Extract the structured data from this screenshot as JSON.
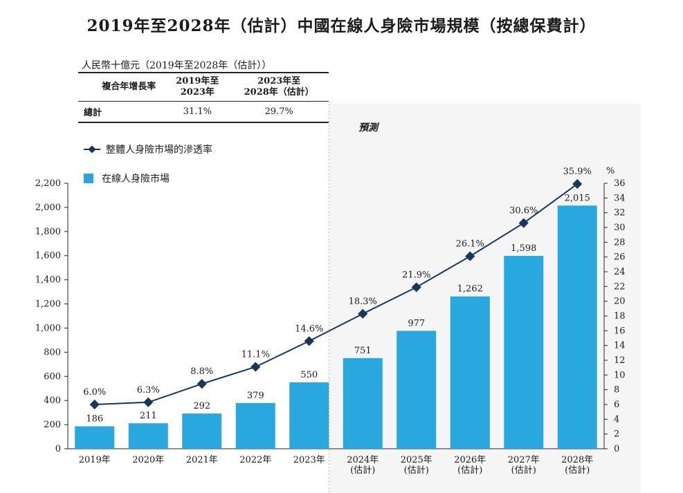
{
  "title": "2019年至2028年（估計）中國在線人身險市場規模（按總保費計）",
  "unit_label": "人民幣十億元（2019年至2028年（估計））",
  "cagr_table": {
    "header": [
      "複合年增長率",
      "2019年至\n2023年",
      "2023年至\n2028年（估計）"
    ],
    "row": [
      "總計",
      "31.1%",
      "29.7%"
    ]
  },
  "forecast_label": "預測",
  "colors": {
    "bar": "#29a8e0",
    "line": "#17375e",
    "forecast_bg": "#ececec"
  },
  "chart_data": {
    "type": "bar",
    "categories": [
      "2019年",
      "2020年",
      "2021年",
      "2022年",
      "2023年",
      "2024年\n(估計)",
      "2025年\n(估計)",
      "2026年\n(估計)",
      "2027年\n(估計)",
      "2028年\n(估計)"
    ],
    "series": [
      {
        "name": "在線人身險市場",
        "type": "bar",
        "axis": "left",
        "values": [
          186,
          211,
          292,
          379,
          550,
          751,
          977,
          1262,
          1598,
          2015
        ],
        "labels": [
          "186",
          "211",
          "292",
          "379",
          "550",
          "751",
          "977",
          "1,262",
          "1,598",
          "2,015"
        ]
      },
      {
        "name": "整體人身險市場的滲透率",
        "type": "line",
        "axis": "right",
        "values": [
          6.0,
          6.3,
          8.8,
          11.1,
          14.6,
          18.3,
          21.9,
          26.1,
          30.6,
          35.9
        ],
        "labels": [
          "6.0%",
          "6.3%",
          "8.8%",
          "11.1%",
          "14.6%",
          "18.3%",
          "21.9%",
          "26.1%",
          "30.6%",
          "35.9%"
        ]
      }
    ],
    "ylim_left": [
      0,
      2200
    ],
    "yticks_left": [
      "0",
      "200",
      "400",
      "600",
      "800",
      "1,000",
      "1,200",
      "1,400",
      "1,600",
      "1,800",
      "2,000",
      "2,200"
    ],
    "ylim_right": [
      0,
      36
    ],
    "yticks_right": [
      "0",
      "2",
      "4",
      "6",
      "8",
      "10",
      "12",
      "14",
      "16",
      "18",
      "20",
      "22",
      "24",
      "26",
      "28",
      "30",
      "32",
      "34",
      "36"
    ],
    "y2_unit": "%",
    "forecast_start_index": 5,
    "legend_position": "top-left",
    "grid": false
  }
}
